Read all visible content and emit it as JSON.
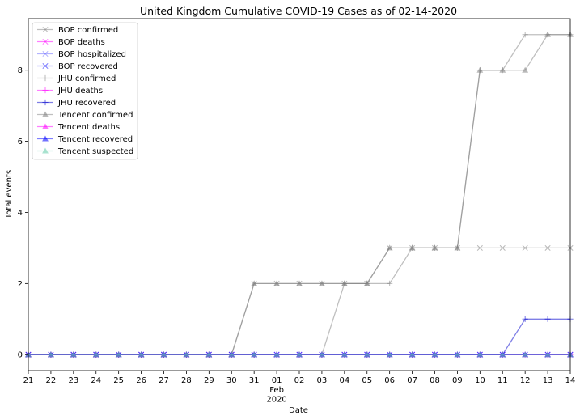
{
  "chart_data": {
    "type": "line",
    "title": "United Kingdom Cumulative COVID-19 Cases as of 02-14-2020",
    "xlabel": "Date",
    "ylabel": "Total events",
    "xlim": [
      0,
      24
    ],
    "ylim": [
      -0.45,
      9.45
    ],
    "y_ticks": [
      0,
      2,
      4,
      6,
      8
    ],
    "y_tick_labels": [
      "0",
      "2",
      "4",
      "6",
      "8"
    ],
    "x_tick_labels": [
      "21",
      "22",
      "23",
      "24",
      "25",
      "26",
      "27",
      "28",
      "29",
      "30",
      "31",
      "01",
      "02",
      "03",
      "04",
      "05",
      "06",
      "07",
      "08",
      "09",
      "10",
      "11",
      "12",
      "13",
      "14"
    ],
    "x_tick_sublabels": {
      "11": [
        "Feb",
        "2020"
      ]
    },
    "x_dates": [
      "2020-01-21",
      "2020-01-22",
      "2020-01-23",
      "2020-01-24",
      "2020-01-25",
      "2020-01-26",
      "2020-01-27",
      "2020-01-28",
      "2020-01-29",
      "2020-01-30",
      "2020-01-31",
      "2020-02-01",
      "2020-02-02",
      "2020-02-03",
      "2020-02-04",
      "2020-02-05",
      "2020-02-06",
      "2020-02-07",
      "2020-02-08",
      "2020-02-09",
      "2020-02-10",
      "2020-02-11",
      "2020-02-12",
      "2020-02-13",
      "2020-02-14"
    ],
    "legend_position": "top-left",
    "grid": false,
    "series": [
      {
        "name": "BOP confirmed",
        "color": "#808080",
        "marker": "x",
        "values": [
          0,
          0,
          0,
          0,
          0,
          0,
          0,
          0,
          0,
          0,
          2,
          2,
          2,
          2,
          2,
          2,
          3,
          3,
          3,
          3,
          3,
          3,
          3,
          3,
          3
        ]
      },
      {
        "name": "BOP deaths",
        "color": "#ff00ff",
        "marker": "x",
        "values": [
          0,
          0,
          0,
          0,
          0,
          0,
          0,
          0,
          0,
          0,
          0,
          0,
          0,
          0,
          0,
          0,
          0,
          0,
          0,
          0,
          0,
          0,
          0,
          0,
          0
        ]
      },
      {
        "name": "BOP hospitalized",
        "color": "#6a6aff",
        "marker": "x",
        "values": [
          0,
          0,
          0,
          0,
          0,
          0,
          0,
          0,
          0,
          0,
          0,
          0,
          0,
          0,
          0,
          0,
          0,
          0,
          0,
          0,
          0,
          0,
          0,
          0,
          0
        ]
      },
      {
        "name": "BOP recovered",
        "color": "#0000ff",
        "marker": "x",
        "values": [
          0,
          0,
          0,
          0,
          0,
          0,
          0,
          0,
          0,
          0,
          0,
          0,
          0,
          0,
          0,
          0,
          0,
          0,
          0,
          0,
          0,
          0,
          0,
          0,
          0
        ]
      },
      {
        "name": "JHU confirmed",
        "color": "#808080",
        "marker": "+",
        "values": [
          0,
          0,
          0,
          0,
          0,
          0,
          0,
          0,
          0,
          0,
          0,
          0,
          0,
          0,
          2,
          2,
          2,
          3,
          3,
          3,
          8,
          8,
          9,
          9,
          9
        ]
      },
      {
        "name": "JHU deaths",
        "color": "#ff00ff",
        "marker": "+",
        "values": [
          0,
          0,
          0,
          0,
          0,
          0,
          0,
          0,
          0,
          0,
          0,
          0,
          0,
          0,
          0,
          0,
          0,
          0,
          0,
          0,
          0,
          0,
          0,
          0,
          0
        ]
      },
      {
        "name": "JHU recovered",
        "color": "#0000cd",
        "marker": "+",
        "values": [
          0,
          0,
          0,
          0,
          0,
          0,
          0,
          0,
          0,
          0,
          0,
          0,
          0,
          0,
          0,
          0,
          0,
          0,
          0,
          0,
          0,
          0,
          1,
          1,
          1
        ]
      },
      {
        "name": "Tencent confirmed",
        "color": "#808080",
        "marker": "^",
        "values": [
          0,
          0,
          0,
          0,
          0,
          0,
          0,
          0,
          0,
          0,
          2,
          2,
          2,
          2,
          2,
          2,
          3,
          3,
          3,
          3,
          8,
          8,
          8,
          9,
          9
        ]
      },
      {
        "name": "Tencent deaths",
        "color": "#ff00ff",
        "marker": "^",
        "values": [
          0,
          0,
          0,
          0,
          0,
          0,
          0,
          0,
          0,
          0,
          0,
          0,
          0,
          0,
          0,
          0,
          0,
          0,
          0,
          0,
          0,
          0,
          0,
          0,
          0
        ]
      },
      {
        "name": "Tencent recovered",
        "color": "#0000ff",
        "marker": "^",
        "values": [
          0,
          0,
          0,
          0,
          0,
          0,
          0,
          0,
          0,
          0,
          0,
          0,
          0,
          0,
          0,
          0,
          0,
          0,
          0,
          0,
          0,
          0,
          0,
          0,
          0
        ]
      },
      {
        "name": "Tencent suspected",
        "color": "#66cdaa",
        "marker": "^",
        "values": [
          0,
          0,
          0,
          0,
          0,
          0,
          0,
          0,
          0,
          0,
          0,
          0,
          0,
          0,
          0,
          0,
          0,
          0,
          0,
          0,
          0,
          0,
          0,
          0,
          0
        ]
      }
    ]
  }
}
